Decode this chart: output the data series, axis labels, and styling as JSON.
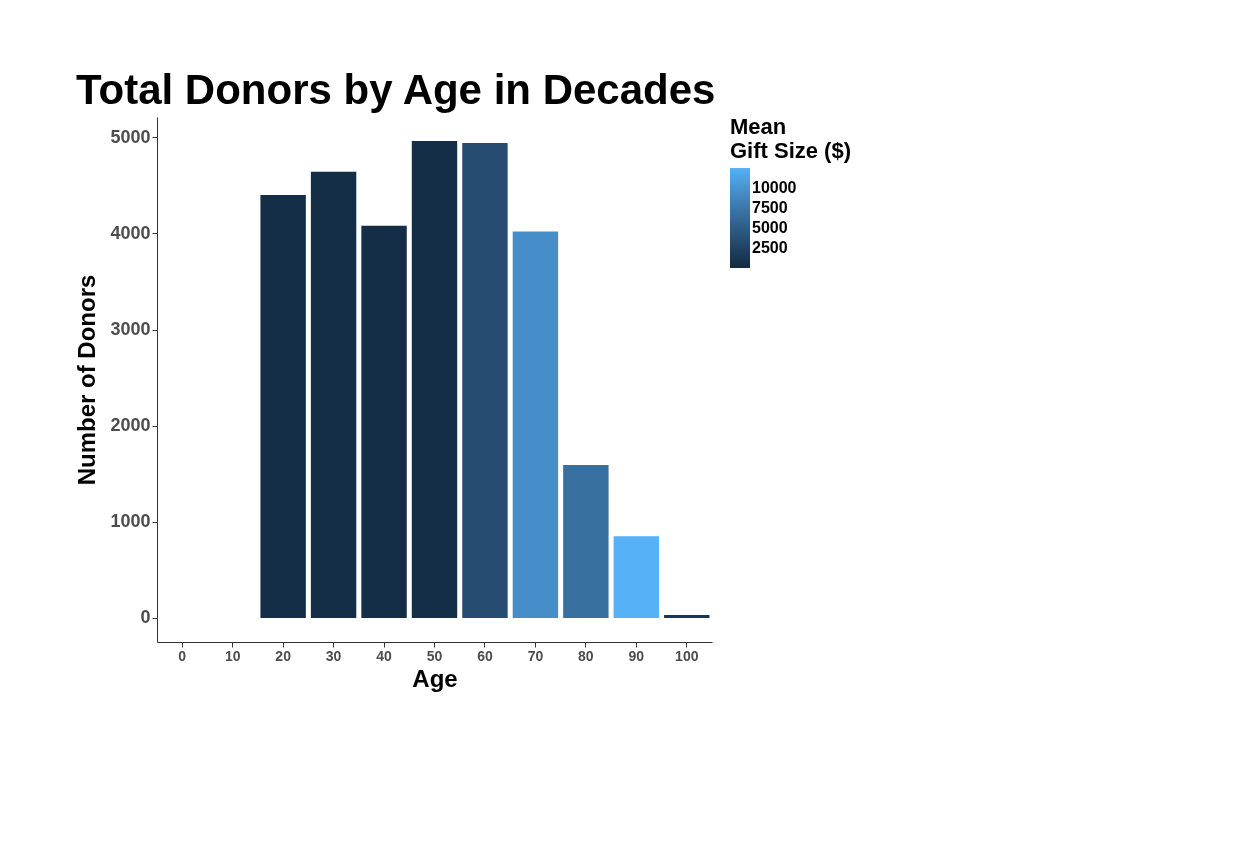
{
  "chart_data": {
    "type": "bar",
    "title": "Total Donors by Age in Decades",
    "xlabel": "Age",
    "ylabel": "Number of Donors",
    "legend_title": "Mean\nGift Size ($)",
    "categories": [
      "0",
      "10",
      "20",
      "30",
      "40",
      "50",
      "60",
      "70",
      "80",
      "90",
      "100"
    ],
    "values": [
      0,
      0,
      4400,
      4640,
      4080,
      4960,
      4940,
      4020,
      1590,
      850,
      30
    ],
    "cvalues": [
      null,
      null,
      300,
      300,
      300,
      300,
      3500,
      9500,
      6700,
      12500,
      1200
    ],
    "colors": [
      "#dde3ea",
      "#dde3ea",
      "#132b43",
      "#132b43",
      "#132b43",
      "#132b43",
      "#26507a",
      "#468dc8",
      "#376a9c",
      "#56b1f7",
      "#1c3a5a"
    ],
    "clim": [
      0,
      12500
    ],
    "cticks": [
      2500,
      5000,
      7500,
      10000
    ],
    "ylim": [
      -250,
      5210
    ],
    "yticks": [
      0,
      1000,
      2000,
      3000,
      4000,
      5000
    ],
    "grid": false
  }
}
